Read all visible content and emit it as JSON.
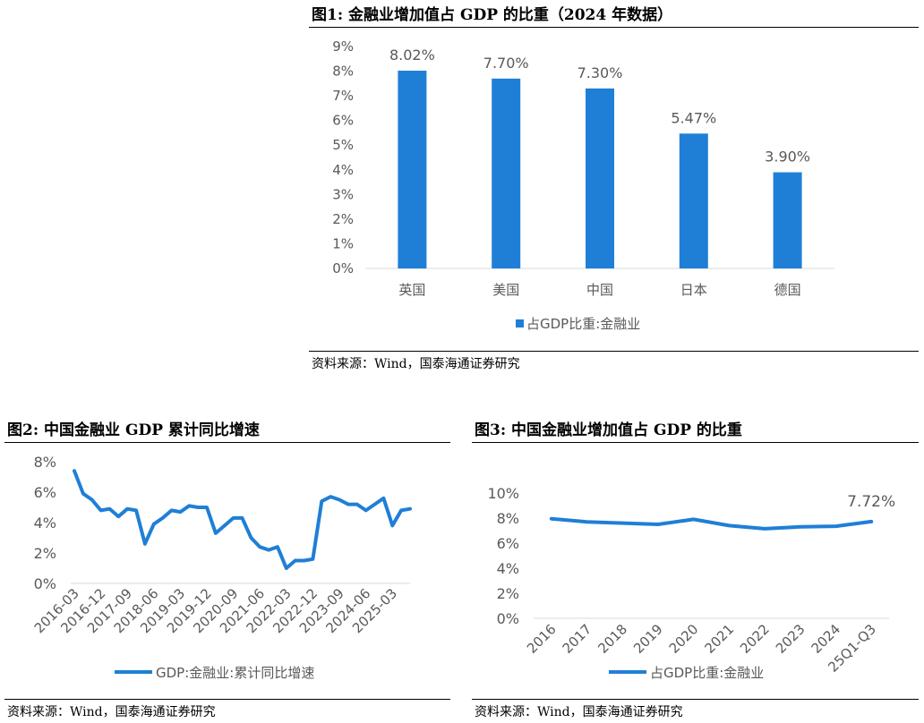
{
  "figures": [
    {
      "title": "图1:  金融业增加值占 GDP 的比重（2024 年数据）",
      "source": "资料来源：Wind，国泰海通证券研究"
    },
    {
      "title": "图2:  中国金融业 GDP 累计同比增速",
      "source": "资料来源：Wind，国泰海通证券研究"
    },
    {
      "title": "图3:  中国金融业增加值占 GDP 的比重",
      "source": "资料来源：Wind，国泰海通证券研究"
    }
  ],
  "colors": {
    "series": "#1F7FD6",
    "axis": "#D9D9D9",
    "text": "#595959"
  },
  "chart_data": [
    {
      "type": "bar",
      "categories": [
        "英国",
        "美国",
        "中国",
        "日本",
        "德国"
      ],
      "values": [
        8.02,
        7.7,
        7.3,
        5.47,
        3.9
      ],
      "data_labels": [
        "8.02%",
        "7.70%",
        "7.30%",
        "5.47%",
        "3.90%"
      ],
      "y_ticks": [
        "0%",
        "1%",
        "2%",
        "3%",
        "4%",
        "5%",
        "6%",
        "7%",
        "8%",
        "9%"
      ],
      "ylim": [
        0,
        9
      ],
      "legend": "占GDP比重:金融业",
      "legend_position": "bottom",
      "grid": false
    },
    {
      "type": "line",
      "x_ticks": [
        "2016-03",
        "2016-12",
        "2017-09",
        "2018-06",
        "2019-03",
        "2019-12",
        "2020-09",
        "2021-06",
        "2022-03",
        "2022-12",
        "2023-09",
        "2024-06",
        "2025-03"
      ],
      "x": [
        "2016-03",
        "2016-06",
        "2016-09",
        "2016-12",
        "2017-03",
        "2017-06",
        "2017-09",
        "2017-12",
        "2018-03",
        "2018-06",
        "2018-09",
        "2018-12",
        "2019-03",
        "2019-06",
        "2019-09",
        "2019-12",
        "2020-03",
        "2020-06",
        "2020-09",
        "2020-12",
        "2021-03",
        "2021-06",
        "2021-09",
        "2021-12",
        "2022-03",
        "2022-06",
        "2022-09",
        "2022-12",
        "2023-03",
        "2023-06",
        "2023-09",
        "2023-12",
        "2024-03",
        "2024-06",
        "2024-09",
        "2024-12",
        "2025-03",
        "2025-06",
        "2025-09"
      ],
      "values": [
        7.4,
        5.9,
        5.5,
        4.8,
        4.9,
        4.4,
        4.9,
        4.8,
        2.6,
        3.9,
        4.3,
        4.8,
        4.7,
        5.1,
        5.0,
        5.0,
        3.3,
        3.8,
        4.3,
        4.3,
        3.0,
        2.4,
        2.2,
        2.4,
        1.0,
        1.5,
        1.5,
        1.6,
        5.4,
        5.7,
        5.5,
        5.2,
        5.2,
        4.8,
        5.2,
        5.6,
        3.8,
        4.8,
        4.9
      ],
      "y_ticks": [
        "0%",
        "2%",
        "4%",
        "6%",
        "8%"
      ],
      "ylim": [
        0,
        8
      ],
      "legend": "GDP:金融业:累计同比增速",
      "legend_position": "bottom",
      "grid": false
    },
    {
      "type": "line",
      "categories": [
        "2016",
        "2017",
        "2018",
        "2019",
        "2020",
        "2021",
        "2022",
        "2023",
        "2024",
        "25Q1-Q3"
      ],
      "values": [
        7.95,
        7.7,
        7.6,
        7.5,
        7.9,
        7.4,
        7.15,
        7.3,
        7.35,
        7.72
      ],
      "data_labels": [
        "7.72%"
      ],
      "y_ticks": [
        "0%",
        "2%",
        "4%",
        "6%",
        "8%",
        "10%"
      ],
      "ylim": [
        0,
        10
      ],
      "legend": "占GDP比重:金融业",
      "legend_position": "bottom",
      "grid": false
    }
  ]
}
